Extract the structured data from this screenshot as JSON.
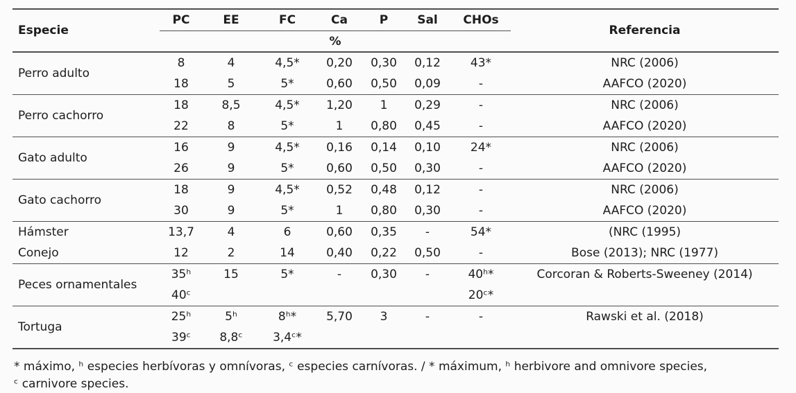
{
  "page": {
    "background_color": "#fbfbfb",
    "text_color": "#1d1d1d",
    "line_color": "#4e4e4e"
  },
  "table": {
    "headers": {
      "especie": "Especie",
      "columns": [
        "PC",
        "EE",
        "FC",
        "Ca",
        "P",
        "Sal",
        "CHOs"
      ],
      "unit": "%",
      "referencia": "Referencia"
    },
    "sections": [
      {
        "species": [
          {
            "name": "Perro adulto",
            "rows": [
              {
                "values": [
                  "8",
                  "4",
                  "4,5*",
                  "0,20",
                  "0,30",
                  "0,12",
                  "43*"
                ],
                "ref": "NRC (2006)"
              },
              {
                "values": [
                  "18",
                  "5",
                  "5*",
                  "0,60",
                  "0,50",
                  "0,09",
                  "-"
                ],
                "ref": "AAFCO (2020)"
              }
            ]
          }
        ]
      },
      {
        "species": [
          {
            "name": "Perro cachorro",
            "rows": [
              {
                "values": [
                  "18",
                  "8,5",
                  "4,5*",
                  "1,20",
                  "1",
                  "0,29",
                  "-"
                ],
                "ref": "NRC (2006)"
              },
              {
                "values": [
                  "22",
                  "8",
                  "5*",
                  "1",
                  "0,80",
                  "0,45",
                  "-"
                ],
                "ref": "AAFCO (2020)"
              }
            ]
          }
        ]
      },
      {
        "species": [
          {
            "name": "Gato adulto",
            "rows": [
              {
                "values": [
                  "16",
                  "9",
                  "4,5*",
                  "0,16",
                  "0,14",
                  "0,10",
                  "24*"
                ],
                "ref": "NRC (2006)"
              },
              {
                "values": [
                  "26",
                  "9",
                  "5*",
                  "0,60",
                  "0,50",
                  "0,30",
                  "-"
                ],
                "ref": "AAFCO (2020)"
              }
            ]
          }
        ]
      },
      {
        "species": [
          {
            "name": "Gato cachorro",
            "rows": [
              {
                "values": [
                  "18",
                  "9",
                  "4,5*",
                  "0,52",
                  "0,48",
                  "0,12",
                  "-"
                ],
                "ref": "NRC (2006)"
              },
              {
                "values": [
                  "30",
                  "9",
                  "5*",
                  "1",
                  "0,80",
                  "0,30",
                  "-"
                ],
                "ref": "AAFCO (2020)"
              }
            ]
          }
        ]
      },
      {
        "species": [
          {
            "name": "Hámster",
            "rows": [
              {
                "values": [
                  "13,7",
                  "4",
                  "6",
                  "0,60",
                  "0,35",
                  "-",
                  "54*"
                ],
                "ref": "(NRC (1995)"
              }
            ]
          },
          {
            "name": "Conejo",
            "rows": [
              {
                "values": [
                  "12",
                  "2",
                  "14",
                  "0,40",
                  "0,22",
                  "0,50",
                  "-"
                ],
                "ref": "Bose (2013); NRC (1977)"
              }
            ]
          }
        ]
      },
      {
        "species": [
          {
            "name": "Peces ornamentales",
            "rows": [
              {
                "values": [
                  "35ʰ",
                  "15",
                  "5*",
                  "-",
                  "0,30",
                  "-",
                  "40ʰ*"
                ],
                "ref": "Corcoran & Roberts-Sweeney (2014)"
              },
              {
                "values": [
                  "40ᶜ",
                  "",
                  "",
                  "",
                  "",
                  "",
                  "20ᶜ*"
                ],
                "ref": ""
              }
            ]
          }
        ]
      },
      {
        "species": [
          {
            "name": "Tortuga",
            "rows": [
              {
                "values": [
                  "25ʰ",
                  "5ʰ",
                  "8ʰ*",
                  "5,70",
                  "3",
                  "-",
                  "-"
                ],
                "ref": "Rawski et al. (2018)"
              },
              {
                "values": [
                  "39ᶜ",
                  "8,8ᶜ",
                  "3,4ᶜ*",
                  "",
                  "",
                  "",
                  ""
                ],
                "ref": ""
              }
            ]
          }
        ]
      }
    ],
    "footnote": "* máximo, ʰ especies herbívoras y omnívoras, ᶜ especies carnívoras. / * máximum, ʰ herbivore and omnivore species, ᶜ carnivore species."
  }
}
